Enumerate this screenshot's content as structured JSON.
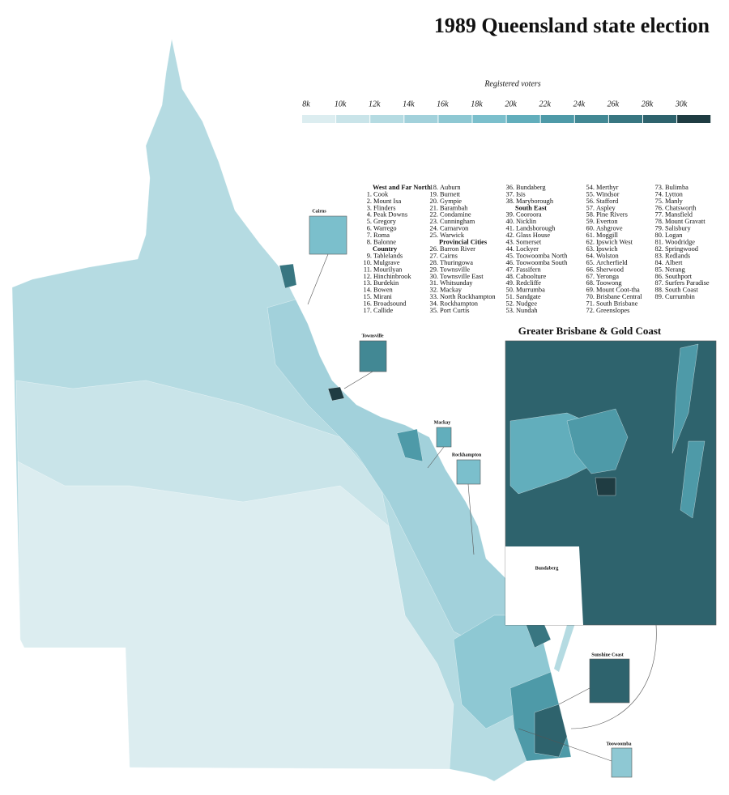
{
  "title": "1989 Queensland state election",
  "legend": {
    "title": "Registered voters",
    "ticks": [
      {
        "value": 8000,
        "label": "8k"
      },
      {
        "value": 10000,
        "label": "10k"
      },
      {
        "value": 12000,
        "label": "12k"
      },
      {
        "value": 14000,
        "label": "14k"
      },
      {
        "value": 16000,
        "label": "16k"
      },
      {
        "value": 18000,
        "label": "18k"
      },
      {
        "value": 20000,
        "label": "20k"
      },
      {
        "value": 22000,
        "label": "22k"
      },
      {
        "value": 24000,
        "label": "24k"
      },
      {
        "value": 26000,
        "label": "26k"
      },
      {
        "value": 28000,
        "label": "28k"
      },
      {
        "value": 30000,
        "label": "30k"
      }
    ],
    "colors": [
      "#dcedf0",
      "#c9e4e9",
      "#b5dbe2",
      "#a2d1db",
      "#8ec8d3",
      "#7bbfcc",
      "#62aebc",
      "#4e9aa8",
      "#428894",
      "#387681",
      "#2e636d",
      "#1f3c42"
    ]
  },
  "electorates": [
    [
      {
        "heading": "West and Far North"
      },
      {
        "number": "1.",
        "name": "Cook"
      },
      {
        "number": "2.",
        "name": "Mount Isa"
      },
      {
        "number": "3.",
        "name": "Flinders"
      },
      {
        "number": "4.",
        "name": "Peak Downs"
      },
      {
        "number": "5.",
        "name": "Gregory"
      },
      {
        "number": "6.",
        "name": "Warrego"
      },
      {
        "number": "7.",
        "name": "Roma"
      },
      {
        "number": "8.",
        "name": "Balonne"
      },
      {
        "heading": "Country"
      },
      {
        "number": "9.",
        "name": "Tablelands"
      },
      {
        "number": "10.",
        "name": "Mulgrave"
      },
      {
        "number": "11.",
        "name": "Mourilyan"
      },
      {
        "number": "12.",
        "name": "Hinchinbrook"
      },
      {
        "number": "13.",
        "name": "Burdekin"
      },
      {
        "number": "14.",
        "name": "Bowen"
      },
      {
        "number": "15.",
        "name": "Mirani"
      },
      {
        "number": "16.",
        "name": "Broadsound"
      },
      {
        "number": "17.",
        "name": "Callide"
      }
    ],
    [
      {
        "number": "18.",
        "name": "Auburn"
      },
      {
        "number": "19.",
        "name": "Burnett"
      },
      {
        "number": "20.",
        "name": "Gympie"
      },
      {
        "number": "21.",
        "name": "Barambah"
      },
      {
        "number": "22.",
        "name": "Condamine"
      },
      {
        "number": "23.",
        "name": "Cunningham"
      },
      {
        "number": "24.",
        "name": "Carnarvon"
      },
      {
        "number": "25.",
        "name": "Warwick"
      },
      {
        "heading": "Provincial Cities"
      },
      {
        "number": "26.",
        "name": "Barron River"
      },
      {
        "number": "27.",
        "name": "Cairns"
      },
      {
        "number": "28.",
        "name": "Thuringowa"
      },
      {
        "number": "29.",
        "name": "Townsville"
      },
      {
        "number": "30.",
        "name": "Townsville East"
      },
      {
        "number": "31.",
        "name": "Whitsunday"
      },
      {
        "number": "32.",
        "name": "Mackay"
      },
      {
        "number": "33.",
        "name": "North Rockhampton"
      },
      {
        "number": "34.",
        "name": "Rockhampton"
      },
      {
        "number": "35.",
        "name": "Port Curtis"
      }
    ],
    [
      {
        "number": "36.",
        "name": "Bundaberg"
      },
      {
        "number": "37.",
        "name": "Isis"
      },
      {
        "number": "38.",
        "name": "Maryborough"
      },
      {
        "heading": "South East"
      },
      {
        "number": "39.",
        "name": "Cooroora"
      },
      {
        "number": "40.",
        "name": "Nicklin"
      },
      {
        "number": "41.",
        "name": "Landsborough"
      },
      {
        "number": "42.",
        "name": "Glass House"
      },
      {
        "number": "43.",
        "name": "Somerset"
      },
      {
        "number": "44.",
        "name": "Lockyer"
      },
      {
        "number": "45.",
        "name": "Toowoomba North"
      },
      {
        "number": "46.",
        "name": "Toowoomba South"
      },
      {
        "number": "47.",
        "name": "Fassifern"
      },
      {
        "number": "48.",
        "name": "Caboolture"
      },
      {
        "number": "49.",
        "name": "Redcliffe"
      },
      {
        "number": "50.",
        "name": "Murrumba"
      },
      {
        "number": "51.",
        "name": "Sandgate"
      },
      {
        "number": "52.",
        "name": "Nudgee"
      },
      {
        "number": "53.",
        "name": "Nundah"
      }
    ],
    [
      {
        "number": "54.",
        "name": "Merthyr"
      },
      {
        "number": "55.",
        "name": "Windsor"
      },
      {
        "number": "56.",
        "name": "Stafford"
      },
      {
        "number": "57.",
        "name": "Aspley"
      },
      {
        "number": "58.",
        "name": "Pine Rivers"
      },
      {
        "number": "59.",
        "name": "Everton"
      },
      {
        "number": "60.",
        "name": "Ashgrove"
      },
      {
        "number": "61.",
        "name": "Moggill"
      },
      {
        "number": "62.",
        "name": "Ipswich West"
      },
      {
        "number": "63.",
        "name": "Ipswich"
      },
      {
        "number": "64.",
        "name": "Wolston"
      },
      {
        "number": "65.",
        "name": "Archerfield"
      },
      {
        "number": "66.",
        "name": "Sherwood"
      },
      {
        "number": "67.",
        "name": "Yeronga"
      },
      {
        "number": "68.",
        "name": "Toowong"
      },
      {
        "number": "69.",
        "name": "Mount Coot-tha"
      },
      {
        "number": "70.",
        "name": "Brisbane Central"
      },
      {
        "number": "71.",
        "name": "South Brisbane"
      },
      {
        "number": "72.",
        "name": "Greenslopes"
      }
    ],
    [
      {
        "number": "73.",
        "name": "Bulimba"
      },
      {
        "number": "74.",
        "name": "Lytton"
      },
      {
        "number": "75.",
        "name": "Manly"
      },
      {
        "number": "76.",
        "name": "Chatsworth"
      },
      {
        "number": "77.",
        "name": "Mansfield"
      },
      {
        "number": "78.",
        "name": "Mount Gravatt"
      },
      {
        "number": "79.",
        "name": "Salisbury"
      },
      {
        "number": "80.",
        "name": "Logan"
      },
      {
        "number": "81.",
        "name": "Woodridge"
      },
      {
        "number": "82.",
        "name": "Springwood"
      },
      {
        "number": "83.",
        "name": "Redlands"
      },
      {
        "number": "84.",
        "name": "Albert"
      },
      {
        "number": "85.",
        "name": "Nerang"
      },
      {
        "number": "86.",
        "name": "Southport"
      },
      {
        "number": "87.",
        "name": "Surfers Paradise"
      },
      {
        "number": "88.",
        "name": "South Coast"
      },
      {
        "number": "89.",
        "name": "Currumbin"
      }
    ]
  ],
  "insets": [
    "Cairns",
    "Townsville",
    "Mackay",
    "Rockhampton",
    "Bundaberg",
    "Sunshine Coast",
    "Toowoomba"
  ],
  "main_inset": "Greater Brisbane & Gold Coast"
}
